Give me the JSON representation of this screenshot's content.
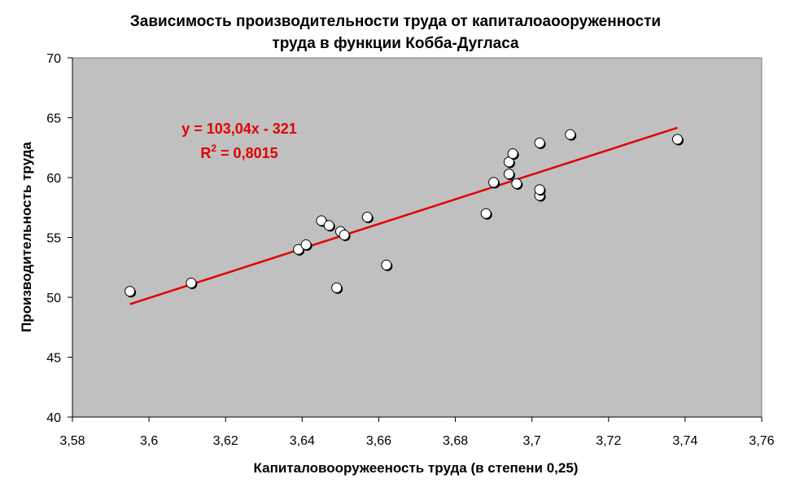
{
  "chart_data": {
    "type": "scatter",
    "title_line1": "Зависимость производительности труда от капиталоаооруженности",
    "title_line2": "труда в функции Кобба-Дугласа",
    "xlabel": "Капиталовооружееность труда (в степени 0,25)",
    "ylabel": "Производительность труда",
    "xlim": [
      3.58,
      3.76
    ],
    "ylim": [
      40,
      70
    ],
    "xticks": [
      3.58,
      3.6,
      3.62,
      3.64,
      3.66,
      3.68,
      3.7,
      3.72,
      3.74,
      3.76
    ],
    "xtick_labels": [
      "3,58",
      "3,6",
      "3,62",
      "3,64",
      "3,66",
      "3,68",
      "3,7",
      "3,72",
      "3,74",
      "3,76"
    ],
    "yticks": [
      40,
      45,
      50,
      55,
      60,
      65,
      70
    ],
    "ytick_labels": [
      "40",
      "45",
      "50",
      "55",
      "60",
      "65",
      "70"
    ],
    "grid": false,
    "background_color": "#c0c0c0",
    "marker_color": "#ffffff",
    "trend_color": "#e00000",
    "trendline": {
      "slope": 103.04,
      "intercept": -321,
      "x_range": [
        3.595,
        3.738
      ]
    },
    "equation": "y = 103,04x - 321",
    "r2_prefix": "R",
    "r2_sup": "2",
    "r2_rest": " = 0,8015",
    "points": [
      {
        "x": 3.595,
        "y": 50.5
      },
      {
        "x": 3.611,
        "y": 51.2
      },
      {
        "x": 3.639,
        "y": 54.0
      },
      {
        "x": 3.641,
        "y": 54.4
      },
      {
        "x": 3.645,
        "y": 56.4
      },
      {
        "x": 3.647,
        "y": 56.0
      },
      {
        "x": 3.649,
        "y": 50.8
      },
      {
        "x": 3.65,
        "y": 55.5
      },
      {
        "x": 3.651,
        "y": 55.2
      },
      {
        "x": 3.657,
        "y": 56.7
      },
      {
        "x": 3.662,
        "y": 52.7
      },
      {
        "x": 3.688,
        "y": 57.0
      },
      {
        "x": 3.69,
        "y": 59.6
      },
      {
        "x": 3.694,
        "y": 61.3
      },
      {
        "x": 3.694,
        "y": 60.3
      },
      {
        "x": 3.695,
        "y": 62.0
      },
      {
        "x": 3.696,
        "y": 59.5
      },
      {
        "x": 3.702,
        "y": 62.9
      },
      {
        "x": 3.702,
        "y": 58.5
      },
      {
        "x": 3.702,
        "y": 59.0
      },
      {
        "x": 3.71,
        "y": 63.6
      },
      {
        "x": 3.738,
        "y": 63.2
      }
    ]
  }
}
